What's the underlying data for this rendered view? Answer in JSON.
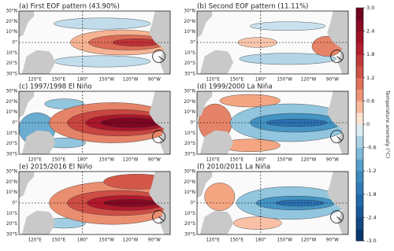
{
  "panels": [
    {
      "title": "(a) First EOF pattern (43.90%)"
    },
    {
      "title": "(b) Second EOF pattern (11.11%)"
    },
    {
      "title": "(c) 1997/1998 El Niño"
    },
    {
      "title": "(d) 1999/2000 La Niña"
    },
    {
      "title": "(e) 2015/2016 El Niño"
    },
    {
      "title": "(f) 2010/2011 La Niña"
    }
  ],
  "lat_labels": [
    "30°N",
    "20°N",
    "10°N",
    "0°",
    "10°S",
    "20°S",
    "30°S"
  ],
  "lon_labels": [
    "120°E",
    "150°E",
    "180°",
    "150°W",
    "120°W",
    "90°W"
  ],
  "colorbar": {
    "label": "Temperature anomaly (°C)",
    "lim": [
      -3,
      3
    ],
    "ticks": [
      {
        "value": 3,
        "label": "3.0"
      },
      2.4,
      1.8,
      1.2,
      0.6,
      0,
      -0.6,
      -1.2,
      -1.8,
      -2.4,
      {
        "value": -3,
        "label": "-3.0"
      }
    ]
  }
}
